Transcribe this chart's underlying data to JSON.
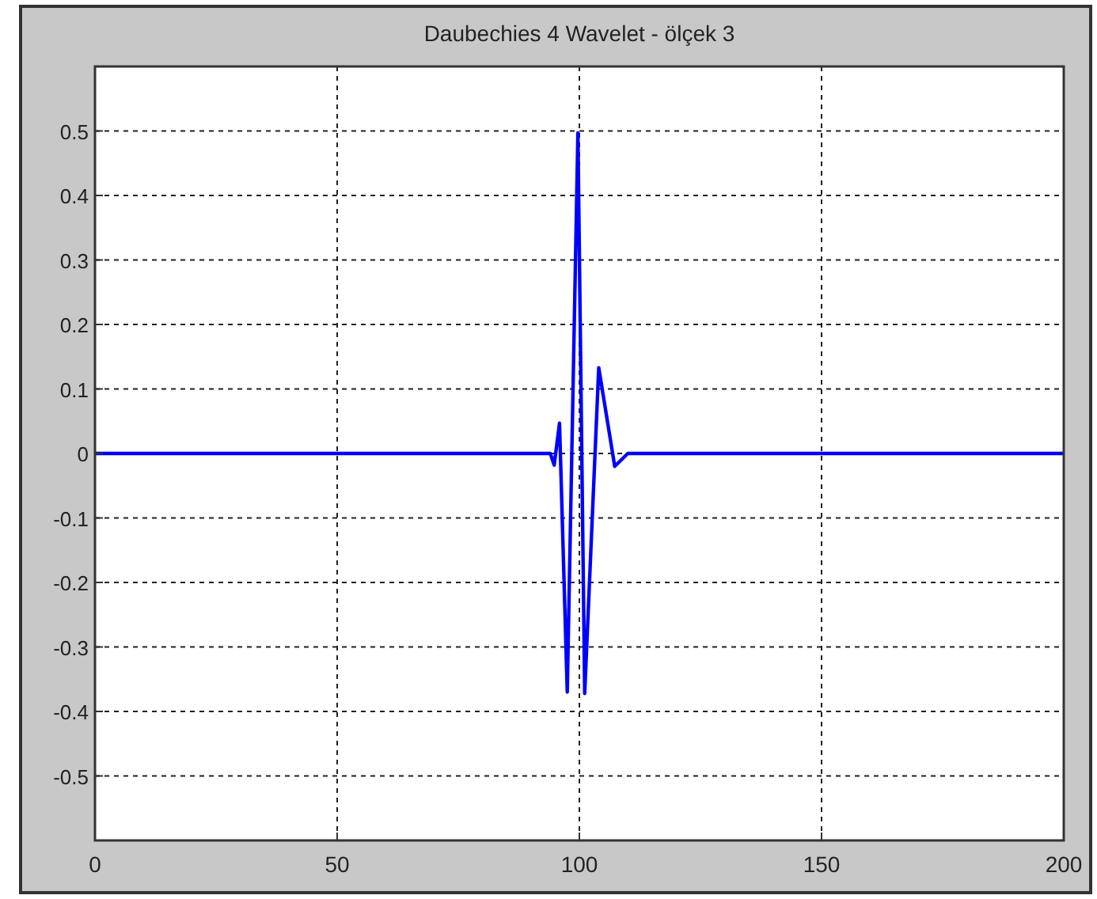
{
  "chart_data": {
    "type": "line",
    "title": "Daubechies 4 Wavelet - ölçek 3",
    "series": [
      {
        "color": "#0000ff",
        "x": [
          0,
          94,
          94.8,
          95.9,
          97.5,
          99.7,
          101.1,
          104,
          107.3,
          110,
          200
        ],
        "values": [
          0,
          0,
          -0.018,
          0.047,
          -0.37,
          0.497,
          -0.372,
          0.133,
          -0.02,
          0,
          0
        ]
      }
    ],
    "xlim": [
      0,
      200
    ],
    "xticks": [
      0,
      50,
      100,
      150,
      200
    ],
    "ylim": [
      -0.6,
      0.6
    ],
    "yticks": [
      -0.5,
      -0.4,
      -0.3,
      -0.2,
      -0.1,
      0,
      0.1,
      0.2,
      0.3,
      0.4,
      0.5
    ],
    "grid": true,
    "line_style": "solid",
    "marker": "none"
  }
}
